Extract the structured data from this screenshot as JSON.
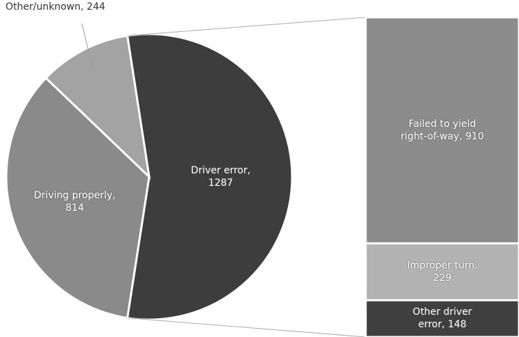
{
  "chart_data": {
    "type": "pie",
    "values": [
      1287,
      814,
      244
    ],
    "value_labels": [
      "Driver error, 1287",
      "Driving properly, 814",
      "Other/unknown, 244"
    ],
    "colors": [
      "#3d3d3d",
      "#8a8a8a",
      "#a3a3a3"
    ],
    "breakdown": {
      "values": [
        910,
        229,
        148
      ],
      "value_labels": [
        "Failed to yield right-of-way, 910",
        "Improper turn, 229",
        "Other driver error, 148"
      ],
      "colors": [
        "#8c8c8c",
        "#b3b3b3",
        "#3f3f3f"
      ]
    }
  }
}
